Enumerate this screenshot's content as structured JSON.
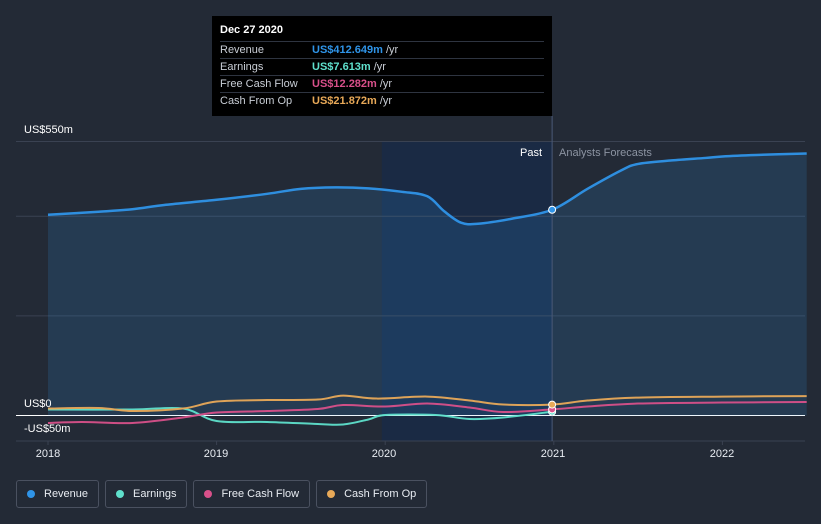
{
  "tooltip": {
    "date": "Dec 27 2020",
    "rows": [
      {
        "label": "Revenue",
        "value": "US$412.649m",
        "unit": "/yr",
        "color": "#2f94e8"
      },
      {
        "label": "Earnings",
        "value": "US$7.613m",
        "unit": "/yr",
        "color": "#5fe0cc"
      },
      {
        "label": "Free Cash Flow",
        "value": "US$12.282m",
        "unit": "/yr",
        "color": "#d8508a"
      },
      {
        "label": "Cash From Op",
        "value": "US$21.872m",
        "unit": "/yr",
        "color": "#e8a958"
      }
    ]
  },
  "regions": {
    "past": "Past",
    "forecast": "Analysts Forecasts"
  },
  "legend": [
    {
      "label": "Revenue",
      "color": "#2f94e8"
    },
    {
      "label": "Earnings",
      "color": "#5fe0cc"
    },
    {
      "label": "Free Cash Flow",
      "color": "#d8508a"
    },
    {
      "label": "Cash From Op",
      "color": "#e8a958"
    }
  ],
  "chart_data": {
    "type": "area",
    "title": "",
    "xlabel": "",
    "ylabel": "",
    "y_tick_labels": [
      "US$550m",
      "US$0",
      "-US$50m"
    ],
    "x_tick_labels": [
      "2018",
      "2019",
      "2020",
      "2021",
      "2022"
    ],
    "ylim": [
      -50,
      550
    ],
    "xlim": [
      2018.0,
      2022.5
    ],
    "past_end": 2020.99,
    "highlight_start": 2019.98,
    "grid": true,
    "series": [
      {
        "name": "Revenue",
        "color": "#2f94e8",
        "fill": true,
        "x": [
          2018.0,
          2018.3,
          2018.5,
          2018.7,
          2019.0,
          2019.3,
          2019.5,
          2019.7,
          2019.9,
          2020.1,
          2020.25,
          2020.35,
          2020.45,
          2020.55,
          2020.75,
          2020.99,
          2021.2,
          2021.4,
          2021.5,
          2021.7,
          2021.9,
          2022.0,
          2022.2,
          2022.5
        ],
        "y": [
          403,
          409,
          414,
          423,
          433,
          445,
          455,
          458,
          456,
          449,
          440,
          410,
          387,
          385,
          395,
          413,
          455,
          492,
          505,
          512,
          517,
          520,
          523,
          526
        ]
      },
      {
        "name": "Earnings",
        "color": "#5fe0cc",
        "fill": false,
        "x": [
          2018.0,
          2018.5,
          2018.8,
          2019.0,
          2019.3,
          2019.6,
          2019.75,
          2019.9,
          2020.0,
          2020.3,
          2020.5,
          2020.7,
          2020.99
        ],
        "y": [
          12,
          12,
          14,
          -11,
          -13,
          -17,
          -18,
          -8,
          1,
          1,
          -7,
          -4,
          7.6
        ]
      },
      {
        "name": "Free Cash Flow",
        "color": "#d8508a",
        "fill": false,
        "x": [
          2018.0,
          2018.2,
          2018.5,
          2018.8,
          2019.0,
          2019.3,
          2019.6,
          2019.75,
          2020.0,
          2020.25,
          2020.5,
          2020.7,
          2020.99,
          2021.2,
          2021.5,
          2022.0,
          2022.5
        ],
        "y": [
          -15,
          -13,
          -15,
          -4,
          6,
          9,
          13,
          21,
          18,
          24,
          16,
          7,
          12.3,
          18,
          24,
          26,
          27
        ]
      },
      {
        "name": "Cash From Op",
        "color": "#e8a958",
        "fill": false,
        "x": [
          2018.0,
          2018.3,
          2018.5,
          2018.8,
          2019.0,
          2019.3,
          2019.6,
          2019.75,
          2019.95,
          2020.25,
          2020.5,
          2020.7,
          2020.99,
          2021.2,
          2021.5,
          2022.0,
          2022.5
        ],
        "y": [
          14,
          15,
          9,
          14,
          28,
          31,
          32,
          40,
          34,
          38,
          30,
          22,
          21.9,
          30,
          36,
          38,
          39
        ]
      }
    ]
  }
}
